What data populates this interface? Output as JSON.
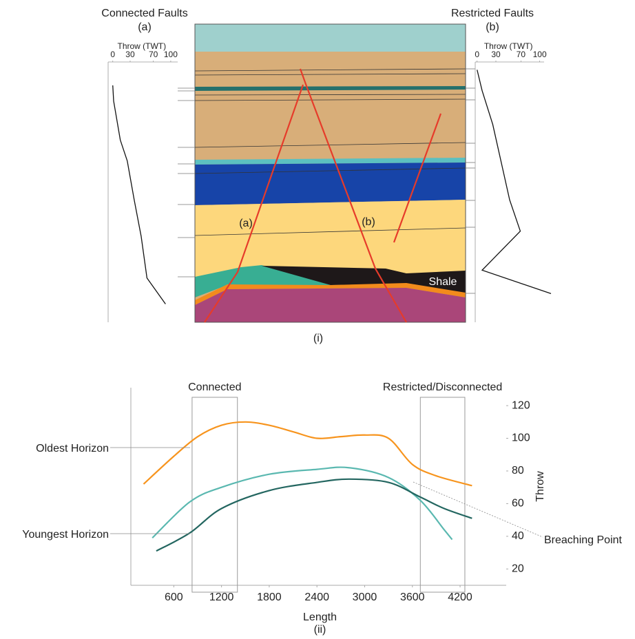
{
  "cross_section": {
    "caption": "(i)",
    "fault_labels": [
      "(a)",
      "(b)"
    ],
    "shale_label": "Shale"
  },
  "chart_data": [
    {
      "type": "profile",
      "title": "Connected Faults",
      "subtitle": "(a)",
      "xlabel": "Throw (TWT)",
      "xlim": [
        -8,
        112
      ],
      "xticks": [
        0,
        30,
        70,
        100
      ],
      "ylim": [
        0,
        100
      ],
      "color": "#111111",
      "values": [
        0,
        1.5,
        13,
        25,
        37,
        49,
        59,
        91
      ],
      "depth": [
        9,
        15,
        30,
        38,
        53,
        67,
        83,
        93
      ]
    },
    {
      "type": "profile",
      "title": "Restricted Faults",
      "subtitle": "(b)",
      "xlabel": "Throw (TWT)",
      "xlim": [
        -3,
        107
      ],
      "xticks": [
        0,
        30,
        70,
        100
      ],
      "ylim": [
        0,
        100
      ],
      "color": "#111111",
      "values": [
        0,
        8,
        25,
        52,
        69,
        8,
        118
      ],
      "depth": [
        3,
        11,
        24,
        53,
        65,
        80,
        89
      ]
    },
    {
      "type": "line",
      "caption": "(ii)",
      "xlabel": "Length",
      "ylabel": "Throw",
      "xlim": [
        60,
        4780
      ],
      "ylim": [
        10,
        131
      ],
      "xticks": [
        600,
        1200,
        1800,
        2400,
        3000,
        3600,
        4200
      ],
      "yticks": [
        20,
        40,
        60,
        80,
        100,
        120
      ],
      "series": [
        {
          "color": "#f7941d",
          "x": [
            220,
            600,
            900,
            1200,
            1500,
            1800,
            2100,
            2400,
            2700,
            3000,
            3300,
            3600,
            3900,
            4350
          ],
          "values": [
            72,
            89,
            101,
            108,
            110,
            108,
            104,
            100,
            101,
            102,
            100,
            84,
            77,
            71
          ]
        },
        {
          "color": "#5ab8b0",
          "x": [
            330,
            800,
            1200,
            1800,
            2400,
            2800,
            3300,
            3700,
            4000,
            4100
          ],
          "values": [
            39,
            61,
            70,
            78,
            81,
            82,
            76,
            62,
            44,
            38
          ]
        },
        {
          "color": "#236660",
          "x": [
            380,
            800,
            1200,
            1800,
            2400,
            2800,
            3300,
            3700,
            4000,
            4350
          ],
          "values": [
            31,
            42,
            57,
            68,
            73,
            75,
            73,
            64,
            57,
            51
          ]
        }
      ],
      "regions": [
        {
          "label": "Connected",
          "range": [
            830,
            1400
          ]
        },
        {
          "label": "Restricted/Disconnected",
          "range": [
            3700,
            4260
          ]
        }
      ],
      "annotations": [
        "Oldest Horizon",
        "Youngest Horizon",
        "Breaching Point"
      ]
    }
  ]
}
